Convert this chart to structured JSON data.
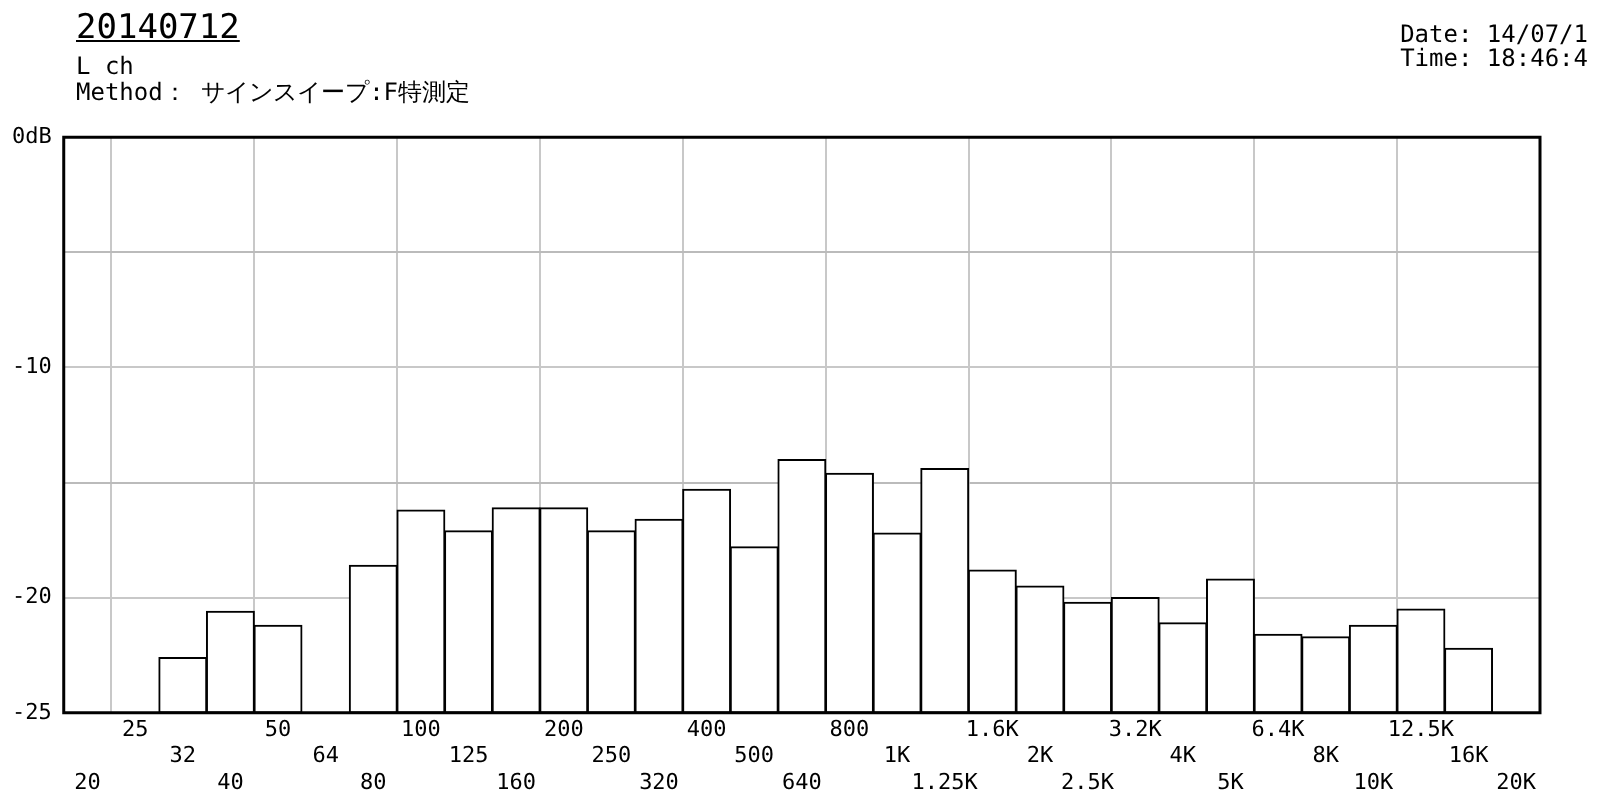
{
  "chart_data": {
    "type": "bar",
    "title": "20140712",
    "subtitle": "L ch",
    "annotations": [
      "Method： サインスイープ:F特測定",
      "Date: 14/07/1",
      "Time: 18:46:4"
    ],
    "categories": [
      "20",
      "25",
      "32",
      "40",
      "50",
      "64",
      "80",
      "100",
      "125",
      "160",
      "200",
      "250",
      "320",
      "400",
      "500",
      "640",
      "800",
      "1K",
      "1.25K",
      "1.6K",
      "2K",
      "2.5K",
      "3.2K",
      "4K",
      "5K",
      "6.4K",
      "8K",
      "10K",
      "12.5K",
      "16K",
      "20K"
    ],
    "values": [
      null,
      null,
      2.4,
      4.4,
      3.8,
      null,
      6.4,
      8.8,
      7.9,
      8.9,
      8.9,
      7.9,
      8.4,
      9.7,
      7.2,
      11.0,
      10.4,
      7.8,
      10.6,
      6.2,
      5.5,
      4.8,
      5.0,
      3.9,
      5.8,
      3.4,
      3.3,
      3.8,
      4.5,
      2.8,
      null
    ],
    "base": [
      null,
      null,
      -25,
      -25,
      -25,
      null,
      -25,
      -25,
      -25,
      -25,
      -25,
      -25,
      -25,
      -25,
      -25,
      -25,
      -25,
      -25,
      -25,
      -25,
      -25,
      -25,
      -25,
      -25,
      -25,
      -25,
      -25,
      -25,
      -25,
      -25,
      null
    ],
    "color": "#ffffff",
    "ylim": [
      -25,
      0
    ],
    "yticks": [
      {
        "value": 0,
        "label": "0dB"
      },
      {
        "value": -5,
        "label": null
      },
      -10,
      {
        "value": -15,
        "label": null
      },
      -20,
      -25
    ],
    "grid": true
  }
}
